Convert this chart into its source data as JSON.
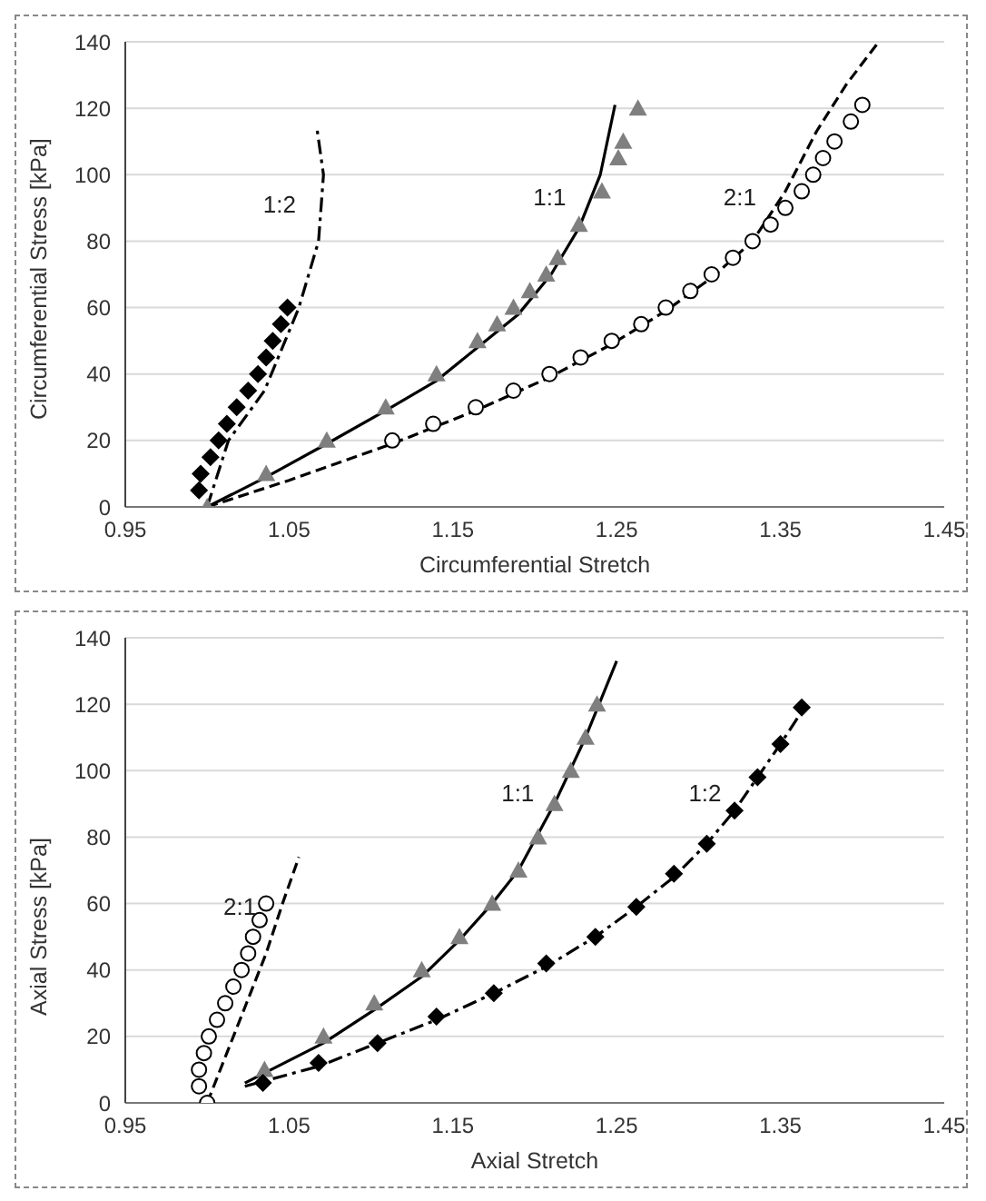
{
  "chart_data": [
    {
      "type": "scatter",
      "xlabel": "Circumferential Stretch",
      "ylabel": "Circumferential Stress [kPa]",
      "xlim": [
        0.95,
        1.45
      ],
      "xticks": [
        0.95,
        1.05,
        1.15,
        1.25,
        1.35,
        1.45
      ],
      "ylim": [
        0,
        140
      ],
      "yticks": [
        0,
        20,
        40,
        60,
        80,
        100,
        120,
        140
      ],
      "grid": "y",
      "legend": false,
      "series": [
        {
          "type": "scatter",
          "marker": "diamond",
          "color": "#000000",
          "x": [
            0.995,
            0.996,
            1.002,
            1.007,
            1.012,
            1.018,
            1.025,
            1.031,
            1.036,
            1.04,
            1.045,
            1.049
          ],
          "values": [
            5,
            10,
            15,
            20,
            25,
            30,
            35,
            40,
            45,
            50,
            55,
            60
          ]
        },
        {
          "type": "line",
          "name": "1:2",
          "line_style": "dashdot",
          "color": "#000000",
          "x": [
            1.0,
            1.013,
            1.035,
            1.056,
            1.068,
            1.071,
            1.067
          ],
          "values": [
            0,
            20,
            35,
            60,
            80,
            100,
            114
          ]
        },
        {
          "type": "scatter",
          "marker": "triangle",
          "color": "#7f7f7f",
          "x": [
            1.0,
            1.036,
            1.073,
            1.109,
            1.14,
            1.165,
            1.177,
            1.187,
            1.197,
            1.207,
            1.214,
            1.227,
            1.241,
            1.251,
            1.254,
            1.263
          ],
          "values": [
            0,
            10,
            20,
            30,
            40,
            50,
            55,
            60,
            65,
            70,
            75,
            85,
            95,
            105,
            110,
            120
          ]
        },
        {
          "type": "line",
          "name": "1:1",
          "line_style": "solid",
          "color": "#000000",
          "x": [
            1.0,
            1.036,
            1.073,
            1.109,
            1.14,
            1.165,
            1.19,
            1.21,
            1.227,
            1.24,
            1.249
          ],
          "values": [
            0,
            9,
            19,
            29,
            38,
            48,
            58,
            70,
            84,
            100,
            121
          ]
        },
        {
          "type": "scatter",
          "marker": "circle",
          "color": "#000000",
          "x": [
            1.113,
            1.138,
            1.164,
            1.187,
            1.209,
            1.228,
            1.247,
            1.265,
            1.28,
            1.295,
            1.308,
            1.321,
            1.333,
            1.344,
            1.353,
            1.363,
            1.37,
            1.376,
            1.383,
            1.393,
            1.4
          ],
          "values": [
            20,
            25,
            30,
            35,
            40,
            45,
            50,
            55,
            60,
            65,
            70,
            75,
            80,
            85,
            90,
            95,
            100,
            105,
            110,
            116,
            121
          ]
        },
        {
          "type": "line",
          "name": "2:1",
          "line_style": "dashed",
          "color": "#000000",
          "x": [
            1.0,
            1.05,
            1.113,
            1.164,
            1.209,
            1.247,
            1.28,
            1.308,
            1.333,
            1.353,
            1.372,
            1.39,
            1.41
          ],
          "values": [
            0,
            8,
            19,
            29,
            39,
            49,
            59,
            69,
            80,
            95,
            113,
            127,
            140
          ]
        }
      ]
    },
    {
      "type": "scatter",
      "xlabel": "Axial Stretch",
      "ylabel": "Axial Stress [kPa]",
      "xlim": [
        0.95,
        1.45
      ],
      "xticks": [
        0.95,
        1.05,
        1.15,
        1.25,
        1.35,
        1.45
      ],
      "ylim": [
        0,
        140
      ],
      "yticks": [
        0,
        20,
        40,
        60,
        80,
        100,
        120,
        140
      ],
      "grid": "y",
      "legend": false,
      "series": [
        {
          "type": "scatter",
          "marker": "circle",
          "color": "#000000",
          "x": [
            1.0,
            0.995,
            0.995,
            0.998,
            1.001,
            1.006,
            1.011,
            1.016,
            1.021,
            1.025,
            1.028,
            1.032,
            1.036
          ],
          "values": [
            0,
            5,
            10,
            15,
            20,
            25,
            30,
            35,
            40,
            45,
            50,
            55,
            60
          ]
        },
        {
          "type": "line",
          "name": "2:1",
          "line_style": "dashed",
          "color": "#000000",
          "x": [
            1.0,
            1.012,
            1.024,
            1.036,
            1.046,
            1.056
          ],
          "values": [
            0,
            15,
            30,
            45,
            60,
            74
          ]
        },
        {
          "type": "scatter",
          "marker": "triangle",
          "color": "#7f7f7f",
          "x": [
            1.035,
            1.071,
            1.102,
            1.131,
            1.154,
            1.174,
            1.19,
            1.202,
            1.212,
            1.222,
            1.231,
            1.238
          ],
          "values": [
            10,
            20,
            30,
            40,
            50,
            60,
            70,
            80,
            90,
            100,
            110,
            120
          ]
        },
        {
          "type": "line",
          "name": "1:1",
          "line_style": "solid",
          "color": "#000000",
          "x": [
            1.023,
            1.071,
            1.102,
            1.131,
            1.154,
            1.174,
            1.19,
            1.212,
            1.231,
            1.25
          ],
          "values": [
            6,
            18,
            28,
            38,
            49,
            60,
            70,
            90,
            110,
            133
          ]
        },
        {
          "type": "scatter",
          "marker": "diamond",
          "color": "#000000",
          "x": [
            1.034,
            1.068,
            1.104,
            1.14,
            1.175,
            1.207,
            1.237,
            1.262,
            1.285,
            1.305,
            1.322,
            1.336,
            1.35,
            1.363
          ],
          "values": [
            6,
            12,
            18,
            26,
            33,
            42,
            50,
            59,
            69,
            78,
            88,
            98,
            108,
            119
          ]
        },
        {
          "type": "line",
          "name": "1:2",
          "line_style": "dashdot",
          "color": "#000000",
          "x": [
            1.023,
            1.068,
            1.104,
            1.14,
            1.175,
            1.207,
            1.237,
            1.262,
            1.285,
            1.305,
            1.322,
            1.336,
            1.35,
            1.366
          ],
          "values": [
            5,
            11,
            18,
            25,
            33,
            41,
            50,
            59,
            68,
            78,
            88,
            98,
            108,
            120
          ]
        }
      ]
    }
  ]
}
